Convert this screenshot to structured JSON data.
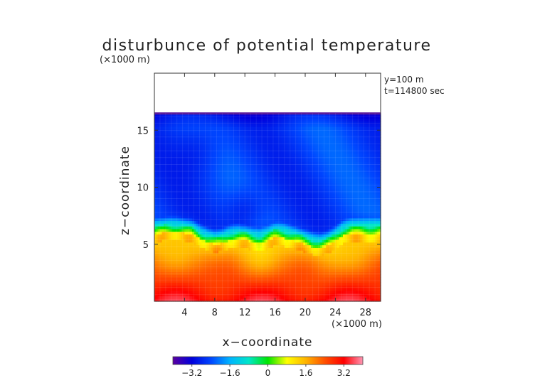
{
  "chart_data": {
    "type": "heatmap",
    "title": "disturbunce of potential temperature",
    "y_unit": "(×1000 m)",
    "x_unit": "(×1000 m)",
    "xlabel": "x−coordinate",
    "ylabel": "z−coordinate",
    "annotations": [
      "y=100 m",
      "t=114800 sec"
    ],
    "xlim": [
      0,
      30
    ],
    "ylim": [
      0,
      20
    ],
    "x_ticks": [
      {
        "value": 4,
        "label": "4"
      },
      {
        "value": 8,
        "label": "8"
      },
      {
        "value": 12,
        "label": "12"
      },
      {
        "value": 16,
        "label": "16"
      },
      {
        "value": 20,
        "label": "20"
      },
      {
        "value": 24,
        "label": "24"
      },
      {
        "value": 28,
        "label": "28"
      }
    ],
    "y_ticks": [
      {
        "value": 5,
        "label": "5"
      },
      {
        "value": 10,
        "label": "10"
      },
      {
        "value": 15,
        "label": "15"
      }
    ],
    "field_top_km": 16.5,
    "interface": {
      "x": [
        0,
        1,
        2,
        3,
        4,
        5,
        6,
        7,
        8,
        9,
        10,
        11,
        12,
        13,
        14,
        15,
        16,
        17,
        18,
        19,
        20,
        21,
        22,
        23,
        24,
        25,
        26,
        27,
        28,
        29,
        30
      ],
      "z": [
        5.9,
        6.0,
        6.1,
        6.1,
        6.0,
        5.9,
        5.5,
        5.2,
        5.0,
        5.1,
        5.4,
        5.5,
        5.4,
        5.2,
        5.1,
        5.3,
        5.6,
        5.6,
        5.4,
        5.2,
        5.0,
        4.8,
        4.7,
        4.9,
        5.3,
        5.8,
        6.0,
        6.0,
        6.0,
        6.0,
        6.0
      ]
    },
    "colorbar": {
      "min": -4,
      "max": 4,
      "ticks": [
        {
          "value": -3.2,
          "label": "−3.2"
        },
        {
          "value": -1.6,
          "label": "−1.6"
        },
        {
          "value": 0,
          "label": "0"
        },
        {
          "value": 1.6,
          "label": "1.6"
        },
        {
          "value": 3.2,
          "label": "3.2"
        }
      ],
      "stops": [
        "#5a00a0",
        "#0000dc",
        "#0046ff",
        "#00b4ff",
        "#00e6c8",
        "#00e600",
        "#ffff00",
        "#ffb400",
        "#ff5000",
        "#ff0000",
        "#ff96b4"
      ]
    }
  }
}
